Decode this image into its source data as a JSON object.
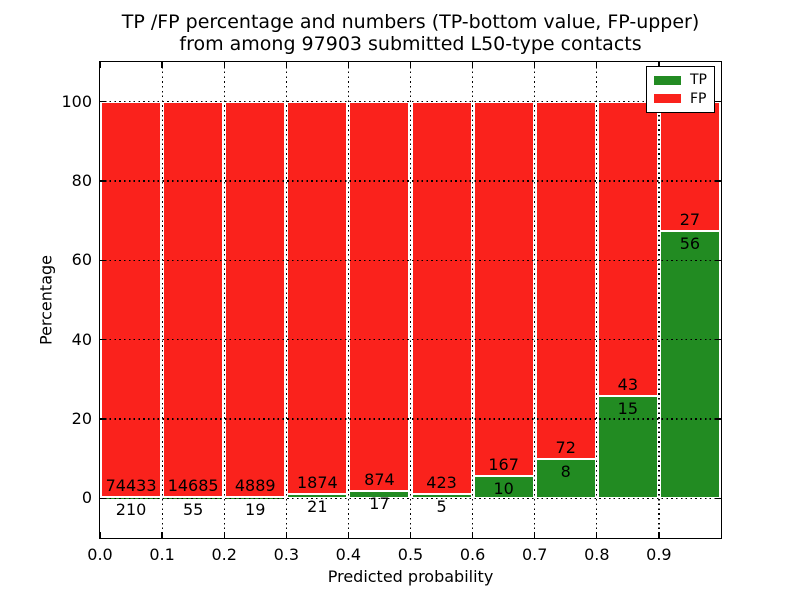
{
  "title": {
    "line1": "TP /FP percentage and numbers (TP-bottom value, FP-upper)",
    "line2": "from among 97903 submitted L50-type contacts"
  },
  "axes": {
    "xlabel": "Predicted probability",
    "ylabel": "Percentage",
    "x_tick_labels": [
      "0.0",
      "0.1",
      "0.2",
      "0.3",
      "0.4",
      "0.5",
      "0.6",
      "0.7",
      "0.8",
      "0.9"
    ],
    "x_tick_values": [
      0.0,
      0.1,
      0.2,
      0.3,
      0.4,
      0.5,
      0.6,
      0.7,
      0.8,
      0.9
    ],
    "y_tick_labels": [
      "0",
      "20",
      "40",
      "60",
      "80",
      "100"
    ],
    "y_tick_values": [
      0,
      20,
      40,
      60,
      80,
      100
    ],
    "xlim": [
      0.0,
      1.0
    ],
    "ylim": [
      -10,
      110
    ],
    "grid_style": "dotted",
    "grid_color": "#000000"
  },
  "legend": {
    "position": "upper-right",
    "items": [
      {
        "label": "TP",
        "color": "#228b22"
      },
      {
        "label": "FP",
        "color": "#fa221c"
      }
    ]
  },
  "chart_data": {
    "type": "bar",
    "stacked": true,
    "normalized_to_percent_per_bar": true,
    "bin_width": 0.1,
    "categories": [
      "0.0-0.1",
      "0.1-0.2",
      "0.2-0.3",
      "0.3-0.4",
      "0.4-0.5",
      "0.5-0.6",
      "0.6-0.7",
      "0.7-0.8",
      "0.8-0.9",
      "0.9-1.0"
    ],
    "bin_starts": [
      0.0,
      0.1,
      0.2,
      0.3,
      0.4,
      0.5,
      0.6,
      0.7,
      0.8,
      0.9
    ],
    "series": [
      {
        "name": "TP",
        "color": "#228b22",
        "counts": [
          210,
          55,
          19,
          21,
          17,
          5,
          10,
          8,
          15,
          56
        ],
        "percent": [
          0.28,
          0.37,
          0.39,
          1.11,
          1.91,
          1.17,
          5.65,
          10.0,
          25.86,
          67.47
        ]
      },
      {
        "name": "FP",
        "color": "#fa221c",
        "counts": [
          74433,
          14685,
          4889,
          1874,
          874,
          423,
          167,
          72,
          43,
          27
        ],
        "percent": [
          99.72,
          99.63,
          99.61,
          98.89,
          98.09,
          98.83,
          94.35,
          90.0,
          74.14,
          32.53
        ]
      }
    ],
    "total_contacts": 97903,
    "title": "TP /FP percentage and numbers (TP-bottom value, FP-upper) from among 97903 submitted L50-type contacts",
    "xlabel": "Predicted probability",
    "ylabel": "Percentage"
  }
}
